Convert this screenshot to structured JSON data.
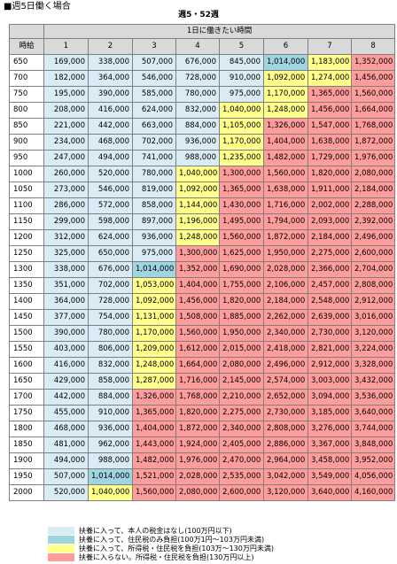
{
  "section_title": "■週5日働く場合",
  "subtitle": "週5・52週",
  "header_span": "1日に働きたい時間",
  "row_header": "時給",
  "hours": [
    "1",
    "2",
    "3",
    "4",
    "5",
    "6",
    "7",
    "8"
  ],
  "rows": [
    {
      "wage": "650",
      "values": [
        "169,000",
        "338,000",
        "507,000",
        "676,000",
        "845,000",
        "1,014,000",
        "1,183,000",
        "1,352,000"
      ],
      "colors": [
        "b",
        "b",
        "b",
        "b",
        "b",
        "t",
        "y",
        "r"
      ]
    },
    {
      "wage": "700",
      "values": [
        "182,000",
        "364,000",
        "546,000",
        "728,000",
        "910,000",
        "1,092,000",
        "1,274,000",
        "1,456,000"
      ],
      "colors": [
        "b",
        "b",
        "b",
        "b",
        "b",
        "y",
        "y",
        "r"
      ]
    },
    {
      "wage": "750",
      "values": [
        "195,000",
        "390,000",
        "585,000",
        "780,000",
        "975,000",
        "1,170,000",
        "1,365,000",
        "1,560,000"
      ],
      "colors": [
        "b",
        "b",
        "b",
        "b",
        "b",
        "y",
        "r",
        "r"
      ]
    },
    {
      "wage": "800",
      "values": [
        "208,000",
        "416,000",
        "624,000",
        "832,000",
        "1,040,000",
        "1,248,000",
        "1,456,000",
        "1,664,000"
      ],
      "colors": [
        "b",
        "b",
        "b",
        "b",
        "y",
        "y",
        "r",
        "r"
      ]
    },
    {
      "wage": "850",
      "values": [
        "221,000",
        "442,000",
        "663,000",
        "884,000",
        "1,105,000",
        "1,326,000",
        "1,547,000",
        "1,768,000"
      ],
      "colors": [
        "b",
        "b",
        "b",
        "b",
        "y",
        "r",
        "r",
        "r"
      ]
    },
    {
      "wage": "900",
      "values": [
        "234,000",
        "468,000",
        "702,000",
        "936,000",
        "1,170,000",
        "1,404,000",
        "1,638,000",
        "1,872,000"
      ],
      "colors": [
        "b",
        "b",
        "b",
        "b",
        "y",
        "r",
        "r",
        "r"
      ]
    },
    {
      "wage": "950",
      "values": [
        "247,000",
        "494,000",
        "741,000",
        "988,000",
        "1,235,000",
        "1,482,000",
        "1,729,000",
        "1,976,000"
      ],
      "colors": [
        "b",
        "b",
        "b",
        "b",
        "y",
        "r",
        "r",
        "r"
      ]
    },
    {
      "wage": "1000",
      "values": [
        "260,000",
        "520,000",
        "780,000",
        "1,040,000",
        "1,300,000",
        "1,560,000",
        "1,820,000",
        "2,080,000"
      ],
      "colors": [
        "b",
        "b",
        "b",
        "y",
        "r",
        "r",
        "r",
        "r"
      ]
    },
    {
      "wage": "1050",
      "values": [
        "273,000",
        "546,000",
        "819,000",
        "1,092,000",
        "1,365,000",
        "1,638,000",
        "1,911,000",
        "2,184,000"
      ],
      "colors": [
        "b",
        "b",
        "b",
        "y",
        "r",
        "r",
        "r",
        "r"
      ]
    },
    {
      "wage": "1100",
      "values": [
        "286,000",
        "572,000",
        "858,000",
        "1,144,000",
        "1,430,000",
        "1,716,000",
        "2,002,000",
        "2,288,000"
      ],
      "colors": [
        "b",
        "b",
        "b",
        "y",
        "r",
        "r",
        "r",
        "r"
      ]
    },
    {
      "wage": "1150",
      "values": [
        "299,000",
        "598,000",
        "897,000",
        "1,196,000",
        "1,495,000",
        "1,794,000",
        "2,093,000",
        "2,392,000"
      ],
      "colors": [
        "b",
        "b",
        "b",
        "y",
        "r",
        "r",
        "r",
        "r"
      ]
    },
    {
      "wage": "1200",
      "values": [
        "312,000",
        "624,000",
        "936,000",
        "1,248,000",
        "1,560,000",
        "1,872,000",
        "2,184,000",
        "2,496,000"
      ],
      "colors": [
        "b",
        "b",
        "b",
        "y",
        "r",
        "r",
        "r",
        "r"
      ]
    },
    {
      "wage": "1250",
      "values": [
        "325,000",
        "650,000",
        "975,000",
        "1,300,000",
        "1,625,000",
        "1,950,000",
        "2,275,000",
        "2,600,000"
      ],
      "colors": [
        "b",
        "b",
        "b",
        "r",
        "r",
        "r",
        "r",
        "r"
      ]
    },
    {
      "wage": "1300",
      "values": [
        "338,000",
        "676,000",
        "1,014,000",
        "1,352,000",
        "1,690,000",
        "2,028,000",
        "2,366,000",
        "2,704,000"
      ],
      "colors": [
        "b",
        "b",
        "t",
        "r",
        "r",
        "r",
        "r",
        "r"
      ]
    },
    {
      "wage": "1350",
      "values": [
        "351,000",
        "702,000",
        "1,053,000",
        "1,404,000",
        "1,755,000",
        "2,106,000",
        "2,457,000",
        "2,808,000"
      ],
      "colors": [
        "b",
        "b",
        "y",
        "r",
        "r",
        "r",
        "r",
        "r"
      ]
    },
    {
      "wage": "1400",
      "values": [
        "364,000",
        "728,000",
        "1,092,000",
        "1,456,000",
        "1,820,000",
        "2,184,000",
        "2,548,000",
        "2,912,000"
      ],
      "colors": [
        "b",
        "b",
        "y",
        "r",
        "r",
        "r",
        "r",
        "r"
      ]
    },
    {
      "wage": "1450",
      "values": [
        "377,000",
        "754,000",
        "1,131,000",
        "1,508,000",
        "1,885,000",
        "2,262,000",
        "2,639,000",
        "3,016,000"
      ],
      "colors": [
        "b",
        "b",
        "y",
        "r",
        "r",
        "r",
        "r",
        "r"
      ]
    },
    {
      "wage": "1500",
      "values": [
        "390,000",
        "780,000",
        "1,170,000",
        "1,560,000",
        "1,950,000",
        "2,340,000",
        "2,730,000",
        "3,120,000"
      ],
      "colors": [
        "b",
        "b",
        "y",
        "r",
        "r",
        "r",
        "r",
        "r"
      ]
    },
    {
      "wage": "1550",
      "values": [
        "403,000",
        "806,000",
        "1,209,000",
        "1,612,000",
        "2,015,000",
        "2,418,000",
        "2,821,000",
        "3,224,000"
      ],
      "colors": [
        "b",
        "b",
        "y",
        "r",
        "r",
        "r",
        "r",
        "r"
      ]
    },
    {
      "wage": "1600",
      "values": [
        "416,000",
        "832,000",
        "1,248,000",
        "1,664,000",
        "2,080,000",
        "2,496,000",
        "2,912,000",
        "3,328,000"
      ],
      "colors": [
        "b",
        "b",
        "y",
        "r",
        "r",
        "r",
        "r",
        "r"
      ]
    },
    {
      "wage": "1650",
      "values": [
        "429,000",
        "858,000",
        "1,287,000",
        "1,716,000",
        "2,145,000",
        "2,574,000",
        "3,003,000",
        "3,432,000"
      ],
      "colors": [
        "b",
        "b",
        "y",
        "r",
        "r",
        "r",
        "r",
        "r"
      ]
    },
    {
      "wage": "1700",
      "values": [
        "442,000",
        "884,000",
        "1,326,000",
        "1,768,000",
        "2,210,000",
        "2,652,000",
        "3,094,000",
        "3,536,000"
      ],
      "colors": [
        "b",
        "b",
        "r",
        "r",
        "r",
        "r",
        "r",
        "r"
      ]
    },
    {
      "wage": "1750",
      "values": [
        "455,000",
        "910,000",
        "1,365,000",
        "1,820,000",
        "2,275,000",
        "2,730,000",
        "3,185,000",
        "3,640,000"
      ],
      "colors": [
        "b",
        "b",
        "r",
        "r",
        "r",
        "r",
        "r",
        "r"
      ]
    },
    {
      "wage": "1800",
      "values": [
        "468,000",
        "936,000",
        "1,404,000",
        "1,872,000",
        "2,340,000",
        "2,808,000",
        "3,276,000",
        "3,744,000"
      ],
      "colors": [
        "b",
        "b",
        "r",
        "r",
        "r",
        "r",
        "r",
        "r"
      ]
    },
    {
      "wage": "1850",
      "values": [
        "481,000",
        "962,000",
        "1,443,000",
        "1,924,000",
        "2,405,000",
        "2,886,000",
        "3,367,000",
        "3,848,000"
      ],
      "colors": [
        "b",
        "b",
        "r",
        "r",
        "r",
        "r",
        "r",
        "r"
      ]
    },
    {
      "wage": "1900",
      "values": [
        "494,000",
        "988,000",
        "1,482,000",
        "1,976,000",
        "2,470,000",
        "2,964,000",
        "3,458,000",
        "3,952,000"
      ],
      "colors": [
        "b",
        "b",
        "r",
        "r",
        "r",
        "r",
        "r",
        "r"
      ]
    },
    {
      "wage": "1950",
      "values": [
        "507,000",
        "1,014,000",
        "1,521,000",
        "2,028,000",
        "2,535,000",
        "3,042,000",
        "3,549,000",
        "4,056,000"
      ],
      "colors": [
        "b",
        "t",
        "r",
        "r",
        "r",
        "r",
        "r",
        "r"
      ]
    },
    {
      "wage": "2000",
      "values": [
        "520,000",
        "1,040,000",
        "1,560,000",
        "2,080,000",
        "2,600,000",
        "3,120,000",
        "3,640,000",
        "4,160,000"
      ],
      "colors": [
        "b",
        "y",
        "r",
        "r",
        "r",
        "r",
        "r",
        "r"
      ]
    }
  ],
  "legend": [
    {
      "key": "b",
      "color": "#d9ecf5",
      "label": "扶養に入って、本人の税金はなし(100万円以下)"
    },
    {
      "key": "t",
      "color": "#9fd5e1",
      "label": "扶養に入って、住民税のみ負担(100万1円～103万円未満)"
    },
    {
      "key": "y",
      "color": "#ffff8c",
      "label": "扶養に入って、所得税・住民税を負担(103万～130万円未満)"
    },
    {
      "key": "r",
      "color": "#ff9c9c",
      "label": "扶養に入らない。所得税・住民税を負担(130万円以上)"
    }
  ]
}
